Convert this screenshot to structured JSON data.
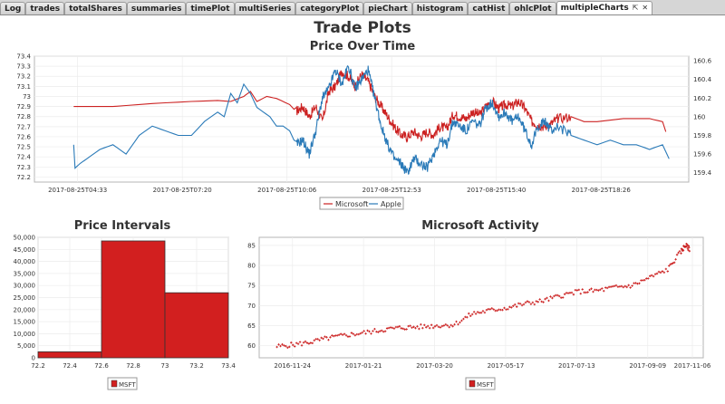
{
  "tabs": [
    {
      "label": "Log",
      "active": false
    },
    {
      "label": "trades",
      "active": false
    },
    {
      "label": "totalShares",
      "active": false
    },
    {
      "label": "summaries",
      "active": false
    },
    {
      "label": "timePlot",
      "active": false
    },
    {
      "label": "multiSeries",
      "active": false
    },
    {
      "label": "categoryPlot",
      "active": false
    },
    {
      "label": "pieChart",
      "active": false
    },
    {
      "label": "histogram",
      "active": false
    },
    {
      "label": "catHist",
      "active": false
    },
    {
      "label": "ohlcPlot",
      "active": false
    },
    {
      "label": "multipleCharts",
      "active": true,
      "controls": [
        "⇱",
        "✕"
      ]
    }
  ],
  "figure_title": "Trade Plots",
  "chart_data": [
    {
      "type": "line",
      "title": "Price Over Time",
      "x_ticks": [
        "2017-08-25T04:33",
        "2017-08-25T07:20",
        "2017-08-25T10:06",
        "2017-08-25T12:53",
        "2017-08-25T15:40",
        "2017-08-25T18:26"
      ],
      "y_left_ticks": [
        "73.4",
        "73.3",
        "73.2",
        "73.1",
        "73",
        "72.9",
        "72.8",
        "72.7",
        "72.6",
        "72.5",
        "72.4",
        "72.3",
        "72.2"
      ],
      "y_right_ticks": [
        "160.6",
        "160.4",
        "160.2",
        "160",
        "159.8",
        "159.6",
        "159.4"
      ],
      "y_left_range": [
        72.15,
        73.4
      ],
      "y_right_range": [
        159.3,
        160.65
      ],
      "grid": true,
      "legend": "bottom",
      "series": [
        {
          "name": "Microsoft",
          "color": "#cc2222",
          "axis": "left",
          "points": [
            [
              0.06,
              72.9
            ],
            [
              0.12,
              72.9
            ],
            [
              0.18,
              72.93
            ],
            [
              0.24,
              72.95
            ],
            [
              0.28,
              72.96
            ],
            [
              0.3,
              72.95
            ],
            [
              0.32,
              73.0
            ],
            [
              0.33,
              73.05
            ],
            [
              0.34,
              72.95
            ],
            [
              0.355,
              73.0
            ],
            [
              0.37,
              72.98
            ],
            [
              0.39,
              72.92
            ],
            [
              0.4,
              72.85
            ],
            [
              0.41,
              72.9
            ],
            [
              0.42,
              72.8
            ],
            [
              0.43,
              72.9
            ],
            [
              0.44,
              72.75
            ],
            [
              0.45,
              73.05
            ],
            [
              0.46,
              73.1
            ],
            [
              0.47,
              73.25
            ],
            [
              0.48,
              73.2
            ],
            [
              0.49,
              73.1
            ],
            [
              0.5,
              73.22
            ],
            [
              0.51,
              73.15
            ],
            [
              0.52,
              73.0
            ],
            [
              0.53,
              72.9
            ],
            [
              0.54,
              72.8
            ],
            [
              0.55,
              72.7
            ],
            [
              0.56,
              72.62
            ],
            [
              0.57,
              72.6
            ],
            [
              0.58,
              72.65
            ],
            [
              0.59,
              72.6
            ],
            [
              0.6,
              72.65
            ],
            [
              0.61,
              72.62
            ],
            [
              0.62,
              72.7
            ],
            [
              0.63,
              72.68
            ],
            [
              0.64,
              72.82
            ],
            [
              0.65,
              72.8
            ],
            [
              0.66,
              72.78
            ],
            [
              0.67,
              72.85
            ],
            [
              0.68,
              72.82
            ],
            [
              0.69,
              72.9
            ],
            [
              0.7,
              72.95
            ],
            [
              0.71,
              72.88
            ],
            [
              0.72,
              72.92
            ],
            [
              0.73,
              72.9
            ],
            [
              0.74,
              72.95
            ],
            [
              0.75,
              72.88
            ],
            [
              0.76,
              72.75
            ],
            [
              0.77,
              72.72
            ],
            [
              0.78,
              72.7
            ],
            [
              0.79,
              72.73
            ],
            [
              0.8,
              72.78
            ],
            [
              0.82,
              72.8
            ],
            [
              0.84,
              72.75
            ],
            [
              0.86,
              72.75
            ],
            [
              0.9,
              72.78
            ],
            [
              0.94,
              72.78
            ],
            [
              0.96,
              72.75
            ],
            [
              0.965,
              72.65
            ]
          ]
        },
        {
          "name": "Apple",
          "color": "#2a7ab8",
          "axis": "right",
          "points": [
            [
              0.06,
              159.7
            ],
            [
              0.062,
              159.45
            ],
            [
              0.07,
              159.5
            ],
            [
              0.08,
              159.55
            ],
            [
              0.1,
              159.65
            ],
            [
              0.12,
              159.7
            ],
            [
              0.14,
              159.6
            ],
            [
              0.16,
              159.8
            ],
            [
              0.18,
              159.9
            ],
            [
              0.2,
              159.85
            ],
            [
              0.22,
              159.8
            ],
            [
              0.24,
              159.8
            ],
            [
              0.26,
              159.95
            ],
            [
              0.28,
              160.05
            ],
            [
              0.29,
              160.0
            ],
            [
              0.3,
              160.25
            ],
            [
              0.31,
              160.15
            ],
            [
              0.32,
              160.35
            ],
            [
              0.33,
              160.25
            ],
            [
              0.34,
              160.1
            ],
            [
              0.35,
              160.05
            ],
            [
              0.36,
              160.0
            ],
            [
              0.37,
              159.9
            ],
            [
              0.38,
              159.9
            ],
            [
              0.39,
              159.85
            ],
            [
              0.4,
              159.7
            ],
            [
              0.41,
              159.75
            ],
            [
              0.42,
              159.6
            ],
            [
              0.43,
              159.85
            ],
            [
              0.44,
              160.2
            ],
            [
              0.45,
              160.3
            ],
            [
              0.46,
              160.5
            ],
            [
              0.47,
              160.35
            ],
            [
              0.48,
              160.55
            ],
            [
              0.49,
              160.3
            ],
            [
              0.5,
              160.4
            ],
            [
              0.51,
              160.5
            ],
            [
              0.52,
              160.2
            ],
            [
              0.53,
              159.9
            ],
            [
              0.54,
              159.7
            ],
            [
              0.55,
              159.55
            ],
            [
              0.56,
              159.5
            ],
            [
              0.57,
              159.4
            ],
            [
              0.58,
              159.55
            ],
            [
              0.59,
              159.5
            ],
            [
              0.6,
              159.45
            ],
            [
              0.61,
              159.6
            ],
            [
              0.62,
              159.75
            ],
            [
              0.63,
              159.7
            ],
            [
              0.64,
              159.95
            ],
            [
              0.65,
              159.9
            ],
            [
              0.66,
              159.85
            ],
            [
              0.67,
              159.95
            ],
            [
              0.68,
              159.9
            ],
            [
              0.69,
              160.1
            ],
            [
              0.7,
              160.15
            ],
            [
              0.71,
              160.0
            ],
            [
              0.72,
              160.05
            ],
            [
              0.73,
              159.95
            ],
            [
              0.74,
              160.0
            ],
            [
              0.75,
              159.85
            ],
            [
              0.76,
              159.7
            ],
            [
              0.77,
              159.9
            ],
            [
              0.78,
              159.95
            ],
            [
              0.79,
              159.85
            ],
            [
              0.8,
              159.9
            ],
            [
              0.82,
              159.8
            ],
            [
              0.84,
              159.75
            ],
            [
              0.86,
              159.7
            ],
            [
              0.88,
              159.75
            ],
            [
              0.9,
              159.7
            ],
            [
              0.92,
              159.7
            ],
            [
              0.94,
              159.65
            ],
            [
              0.96,
              159.7
            ],
            [
              0.97,
              159.55
            ]
          ]
        }
      ]
    },
    {
      "type": "bar",
      "title": "Price Intervals",
      "x_ticks": [
        "72.2",
        "72.4",
        "72.6",
        "72.8",
        "73",
        "73.2",
        "73.4"
      ],
      "x_range": [
        72.2,
        73.4
      ],
      "y_ticks": [
        "50,000",
        "45,000",
        "40,000",
        "35,000",
        "30,000",
        "25,000",
        "20,000",
        "15,000",
        "10,000",
        "5,000",
        "0"
      ],
      "y_range": [
        0,
        50000
      ],
      "bins": [
        {
          "start": 72.2,
          "end": 72.6,
          "value": 2500
        },
        {
          "start": 72.6,
          "end": 73.0,
          "value": 48500
        },
        {
          "start": 73.0,
          "end": 73.4,
          "value": 27000
        }
      ],
      "series": [
        {
          "name": "MSFT",
          "color": "#d21f1f"
        }
      ],
      "legend": "bottom",
      "grid": true
    },
    {
      "type": "scatter",
      "title": "Microsoft Activity",
      "x_ticks": [
        "2016-11-24",
        "2017-01-21",
        "2017-03-20",
        "2017-05-17",
        "2017-07-13",
        "2017-09-09",
        "2017-11-06"
      ],
      "y_ticks": [
        "85",
        "80",
        "75",
        "70",
        "65",
        "60"
      ],
      "y_range": [
        57,
        87
      ],
      "series": [
        {
          "name": "MSFT",
          "color": "#cc2222",
          "points": [
            [
              0.04,
              59.8
            ],
            [
              0.08,
              60.3
            ],
            [
              0.12,
              61.0
            ],
            [
              0.16,
              62.0
            ],
            [
              0.2,
              62.7
            ],
            [
              0.24,
              63.3
            ],
            [
              0.28,
              64.0
            ],
            [
              0.32,
              64.5
            ],
            [
              0.36,
              64.7
            ],
            [
              0.4,
              65.0
            ],
            [
              0.44,
              65.3
            ],
            [
              0.48,
              68.0
            ],
            [
              0.52,
              68.8
            ],
            [
              0.56,
              69.5
            ],
            [
              0.6,
              70.5
            ],
            [
              0.64,
              71.2
            ],
            [
              0.68,
              72.5
            ],
            [
              0.72,
              73.5
            ],
            [
              0.76,
              73.7
            ],
            [
              0.8,
              74.5
            ],
            [
              0.84,
              75.0
            ],
            [
              0.88,
              77.0
            ],
            [
              0.92,
              79.0
            ],
            [
              0.95,
              83.5
            ],
            [
              0.96,
              85.0
            ],
            [
              0.97,
              84.0
            ]
          ]
        }
      ],
      "legend": "bottom",
      "grid": true
    }
  ]
}
